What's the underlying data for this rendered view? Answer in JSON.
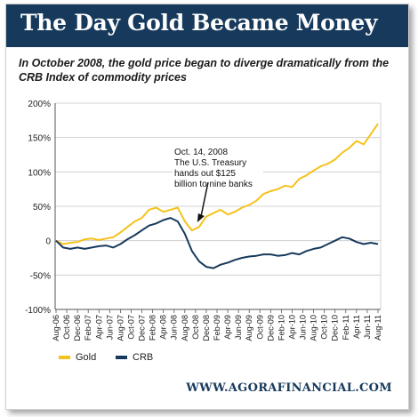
{
  "banner": {
    "title": "The Day Gold Became Money"
  },
  "subtitle": "In October 2008, the gold price began to diverge dramatically from the CRB Index of commodity prices",
  "footer": {
    "website": "WWW.AGORAFINANCIAL.COM"
  },
  "colors": {
    "banner": "#173a5c",
    "gold": "#f5c21b",
    "crb": "#173a5c",
    "grid": "#c9c9c9"
  },
  "chart_data": {
    "type": "line",
    "title": "The Day Gold Became Money",
    "subtitle": "In October 2008, the gold price began to diverge dramatically from the CRB Index of commodity prices",
    "xlabel": "",
    "ylabel": "",
    "ylim": [
      -100,
      200
    ],
    "yticks": [
      -100,
      -50,
      0,
      50,
      100,
      150,
      200
    ],
    "ytick_labels": [
      "-100%",
      "-50%",
      "0",
      "50%",
      "100%",
      "150%",
      "200%"
    ],
    "x_tick_labels": [
      "Aug-06",
      "Oct-06",
      "Dec-06",
      "Feb-07",
      "Apr-07",
      "Jun-07",
      "Aug-07",
      "Oct-07",
      "Dec-07",
      "Feb-08",
      "Apr-08",
      "Jun-08",
      "Aug-08",
      "Oct-08",
      "Dec-08",
      "Feb-09",
      "Apr-09",
      "Jun-09",
      "Aug-09",
      "Oct-09",
      "Dec-09",
      "Feb-10",
      "Apr-10",
      "Jun-10",
      "Aug-10",
      "Oct-10",
      "Dec-10",
      "Feb-11",
      "Apr-11",
      "Jun-11",
      "Aug-11"
    ],
    "grid": true,
    "legend": "bottom-left",
    "series": [
      {
        "name": "Gold",
        "color": "#f5c21b",
        "values": [
          0,
          -5,
          -3,
          -2,
          2,
          3,
          1,
          3,
          5,
          12,
          20,
          28,
          33,
          45,
          48,
          42,
          45,
          48,
          28,
          15,
          20,
          35,
          40,
          45,
          38,
          42,
          48,
          52,
          58,
          68,
          72,
          75,
          80,
          78,
          90,
          95,
          102,
          108,
          112,
          118,
          128,
          135,
          145,
          140,
          155,
          170
        ]
      },
      {
        "name": "CRB",
        "color": "#173a5c",
        "values": [
          0,
          -10,
          -12,
          -10,
          -12,
          -10,
          -8,
          -7,
          -10,
          -5,
          2,
          8,
          15,
          22,
          25,
          30,
          33,
          28,
          10,
          -15,
          -30,
          -38,
          -40,
          -35,
          -32,
          -28,
          -25,
          -23,
          -22,
          -20,
          -20,
          -22,
          -21,
          -18,
          -20,
          -15,
          -12,
          -10,
          -5,
          0,
          5,
          3,
          -2,
          -5,
          -3,
          -5
        ]
      }
    ],
    "annotations": [
      {
        "lines": [
          "Oct. 14, 2008",
          "The U.S. Treasury",
          "hands out $125",
          "billion to nine banks"
        ],
        "target": "Oct-08"
      }
    ]
  }
}
